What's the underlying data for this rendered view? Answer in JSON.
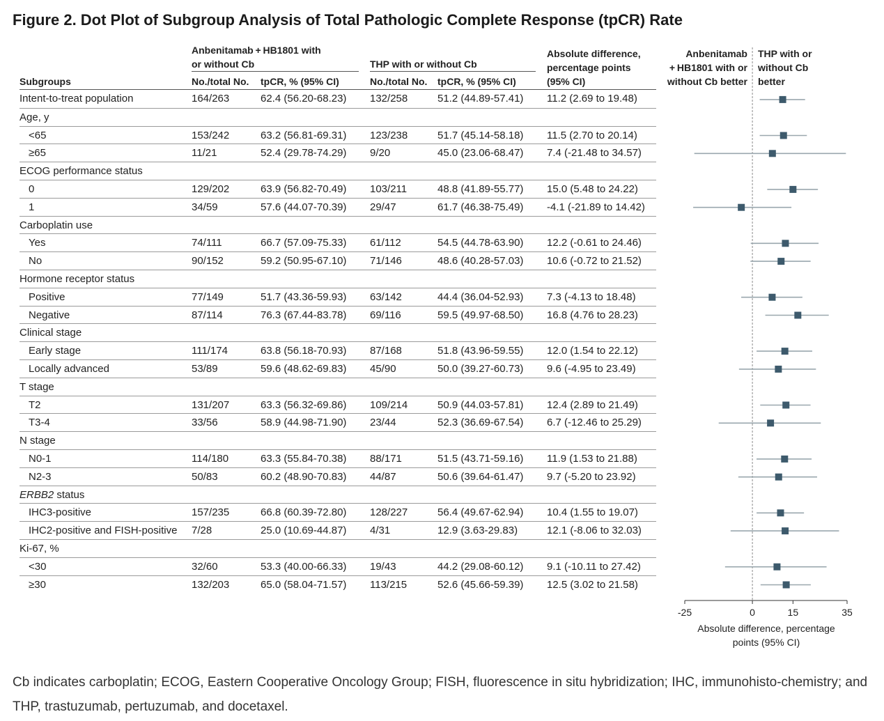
{
  "title": "Figure 2.  Dot Plot of Subgroup Analysis of Total Pathologic Complete Response (tpCR) Rate",
  "headers": {
    "group_a": "Anbenitamab + HB1801 with or without Cb",
    "group_a_line1": "Anbenitamab + HB1801 with",
    "group_a_line2": "or without Cb",
    "group_b": "THP with or without Cb",
    "diff_line1": "Absolute difference,",
    "diff_line2": "percentage points",
    "diff_line3": "(95% CI)",
    "subgroups": "Subgroups",
    "no_total": "No./total No.",
    "tpcr": "tpCR, % (95% CI)",
    "no_total_b": "No./total No.",
    "tpcr_b": "tpCR, % (95% CI)",
    "favor_left_1": "Anbenitamab",
    "favor_left_2": "+ HB1801 with or",
    "favor_left_3": "without Cb better",
    "favor_right_1": "THP with or",
    "favor_right_2": "without Cb",
    "favor_right_3": "better"
  },
  "rows": [
    {
      "label": "Intent-to-treat population",
      "a_n": "164/263",
      "a_rate": "62.4 (56.20-68.23)",
      "b_n": "132/258",
      "b_rate": "51.2 (44.89-57.41)",
      "diff": "11.2 (2.69 to 19.48)"
    },
    {
      "label": "Age, y",
      "header": true
    },
    {
      "label": "<65",
      "indent": true,
      "a_n": "153/242",
      "a_rate": "63.2 (56.81-69.31)",
      "b_n": "123/238",
      "b_rate": "51.7 (45.14-58.18)",
      "diff": "11.5 (2.70 to 20.14)"
    },
    {
      "label": "≥65",
      "indent": true,
      "a_n": "11/21",
      "a_rate": "52.4 (29.78-74.29)",
      "b_n": "9/20",
      "b_rate": "45.0 (23.06-68.47)",
      "diff": "7.4 (-21.48 to 34.57)"
    },
    {
      "label": "ECOG performance status",
      "header": true
    },
    {
      "label": "0",
      "indent": true,
      "a_n": "129/202",
      "a_rate": "63.9 (56.82-70.49)",
      "b_n": "103/211",
      "b_rate": "48.8 (41.89-55.77)",
      "diff": "15.0 (5.48 to 24.22)"
    },
    {
      "label": "1",
      "indent": true,
      "a_n": "34/59",
      "a_rate": "57.6 (44.07-70.39)",
      "b_n": "29/47",
      "b_rate": "61.7 (46.38-75.49)",
      "diff": "-4.1 (-21.89 to 14.42)"
    },
    {
      "label": "Carboplatin use",
      "header": true
    },
    {
      "label": "Yes",
      "indent": true,
      "a_n": "74/111",
      "a_rate": "66.7 (57.09-75.33)",
      "b_n": "61/112",
      "b_rate": "54.5 (44.78-63.90)",
      "diff": "12.2 (-0.61 to 24.46)"
    },
    {
      "label": "No",
      "indent": true,
      "a_n": "90/152",
      "a_rate": "59.2 (50.95-67.10)",
      "b_n": "71/146",
      "b_rate": "48.6 (40.28-57.03)",
      "diff": "10.6 (-0.72 to 21.52)"
    },
    {
      "label": "Hormone receptor status",
      "header": true
    },
    {
      "label": "Positive",
      "indent": true,
      "a_n": "77/149",
      "a_rate": "51.7 (43.36-59.93)",
      "b_n": "63/142",
      "b_rate": "44.4 (36.04-52.93)",
      "diff": "7.3 (-4.13 to 18.48)"
    },
    {
      "label": "Negative",
      "indent": true,
      "a_n": "87/114",
      "a_rate": "76.3 (67.44-83.78)",
      "b_n": "69/116",
      "b_rate": "59.5 (49.97-68.50)",
      "diff": "16.8 (4.76 to 28.23)"
    },
    {
      "label": "Clinical stage",
      "header": true
    },
    {
      "label": "Early stage",
      "indent": true,
      "a_n": "111/174",
      "a_rate": "63.8 (56.18-70.93)",
      "b_n": "87/168",
      "b_rate": "51.8 (43.96-59.55)",
      "diff": "12.0 (1.54 to 22.12)"
    },
    {
      "label": "Locally advanced",
      "indent": true,
      "a_n": "53/89",
      "a_rate": "59.6 (48.62-69.83)",
      "b_n": "45/90",
      "b_rate": "50.0 (39.27-60.73)",
      "diff": "9.6 (-4.95 to 23.49)"
    },
    {
      "label": "T stage",
      "header": true
    },
    {
      "label": "T2",
      "indent": true,
      "a_n": "131/207",
      "a_rate": "63.3 (56.32-69.86)",
      "b_n": "109/214",
      "b_rate": "50.9 (44.03-57.81)",
      "diff": "12.4 (2.89 to 21.49)"
    },
    {
      "label": "T3-4",
      "indent": true,
      "a_n": "33/56",
      "a_rate": "58.9 (44.98-71.90)",
      "b_n": "23/44",
      "b_rate": "52.3 (36.69-67.54)",
      "diff": "6.7 (-12.46 to 25.29)"
    },
    {
      "label": "N stage",
      "header": true
    },
    {
      "label": "N0-1",
      "indent": true,
      "a_n": "114/180",
      "a_rate": "63.3 (55.84-70.38)",
      "b_n": "88/171",
      "b_rate": "51.5 (43.71-59.16)",
      "diff": "11.9 (1.53 to 21.88)"
    },
    {
      "label": "N2-3",
      "indent": true,
      "a_n": "50/83",
      "a_rate": "60.2 (48.90-70.83)",
      "b_n": "44/87",
      "b_rate": "50.6 (39.64-61.47)",
      "diff": "9.7 (-5.20 to 23.92)"
    },
    {
      "label": "ERBB2 status",
      "header": true,
      "italic_part": "ERBB2",
      "rest": " status"
    },
    {
      "label": "IHC3-positive",
      "indent": true,
      "a_n": "157/235",
      "a_rate": "66.8 (60.39-72.80)",
      "b_n": "128/227",
      "b_rate": "56.4 (49.67-62.94)",
      "diff": "10.4 (1.55 to 19.07)"
    },
    {
      "label": "IHC2-positive and FISH-positive",
      "indent": true,
      "a_n": "7/28",
      "a_rate": "25.0 (10.69-44.87)",
      "b_n": "4/31",
      "b_rate": "12.9 (3.63-29.83)",
      "diff": "12.1 (-8.06 to 32.03)"
    },
    {
      "label": "Ki-67, %",
      "header": true
    },
    {
      "label": "<30",
      "indent": true,
      "a_n": "32/60",
      "a_rate": "53.3 (40.00-66.33)",
      "b_n": "19/43",
      "b_rate": "44.2 (29.08-60.12)",
      "diff": "9.1 (-10.11 to 27.42)"
    },
    {
      "label": "≥30",
      "indent": true,
      "a_n": "132/203",
      "a_rate": "65.0 (58.04-71.57)",
      "b_n": "113/215",
      "b_rate": "52.6 (45.66-59.39)",
      "diff": "12.5 (3.02 to 21.58)"
    }
  ],
  "chart_data": {
    "type": "scatter",
    "subtype": "forest",
    "xlabel": "Absolute difference, percentage points (95% CI)",
    "xlim": [
      -25,
      35
    ],
    "xticks": [
      -25,
      0,
      15,
      35
    ],
    "reference_line": 0,
    "reference_line_style": "dashed",
    "marker_color": "#3d5a6c",
    "ci_color": "#9aa7ae",
    "points": [
      {
        "subgroup": "Intent-to-treat population",
        "est": 11.2,
        "lo": 2.69,
        "hi": 19.48
      },
      {
        "subgroup": "<65",
        "est": 11.5,
        "lo": 2.7,
        "hi": 20.14
      },
      {
        "subgroup": "≥65",
        "est": 7.4,
        "lo": -21.48,
        "hi": 34.57
      },
      {
        "subgroup": "0",
        "est": 15.0,
        "lo": 5.48,
        "hi": 24.22
      },
      {
        "subgroup": "1",
        "est": -4.1,
        "lo": -21.89,
        "hi": 14.42
      },
      {
        "subgroup": "Yes",
        "est": 12.2,
        "lo": -0.61,
        "hi": 24.46
      },
      {
        "subgroup": "No",
        "est": 10.6,
        "lo": -0.72,
        "hi": 21.52
      },
      {
        "subgroup": "Positive",
        "est": 7.3,
        "lo": -4.13,
        "hi": 18.48
      },
      {
        "subgroup": "Negative",
        "est": 16.8,
        "lo": 4.76,
        "hi": 28.23
      },
      {
        "subgroup": "Early stage",
        "est": 12.0,
        "lo": 1.54,
        "hi": 22.12
      },
      {
        "subgroup": "Locally advanced",
        "est": 9.6,
        "lo": -4.95,
        "hi": 23.49
      },
      {
        "subgroup": "T2",
        "est": 12.4,
        "lo": 2.89,
        "hi": 21.49
      },
      {
        "subgroup": "T3-4",
        "est": 6.7,
        "lo": -12.46,
        "hi": 25.29
      },
      {
        "subgroup": "N0-1",
        "est": 11.9,
        "lo": 1.53,
        "hi": 21.88
      },
      {
        "subgroup": "N2-3",
        "est": 9.7,
        "lo": -5.2,
        "hi": 23.92
      },
      {
        "subgroup": "IHC3-positive",
        "est": 10.4,
        "lo": 1.55,
        "hi": 19.07
      },
      {
        "subgroup": "IHC2-positive and FISH-positive",
        "est": 12.1,
        "lo": -8.06,
        "hi": 32.03
      },
      {
        "subgroup": "<30",
        "est": 9.1,
        "lo": -10.11,
        "hi": 27.42
      },
      {
        "subgroup": "≥30",
        "est": 12.5,
        "lo": 3.02,
        "hi": 21.58
      }
    ]
  },
  "xaxis_label_line1": "Absolute difference, percentage",
  "xaxis_label_line2": "points (95% CI)",
  "footnote": "Cb indicates carboplatin; ECOG, Eastern Cooperative Oncology Group; FISH, fluorescence in situ hybridization; IHC, immunohisto-chemistry; and THP, trastuzumab, pertuzumab, and docetaxel."
}
